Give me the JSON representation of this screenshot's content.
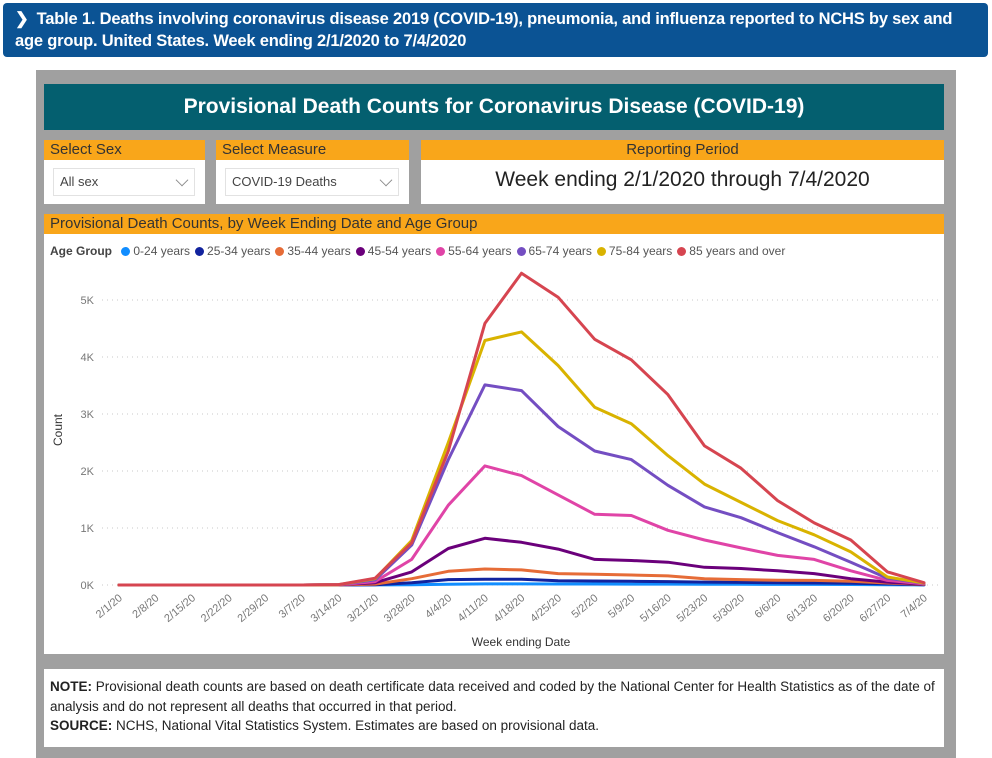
{
  "banner": {
    "chevron_icon": "chevron-right-icon",
    "chevron_glyph": "❯",
    "text": "Table 1. Deaths involving coronavirus disease 2019 (COVID-19), pneumonia, and influenza reported to NCHS by sex and age group. United States. Week ending 2/1/2020 to 7/4/2020"
  },
  "dashboard_title": "Provisional Death Counts for Coronavirus Disease (COVID-19)",
  "filters": {
    "sex": {
      "label": "Select Sex",
      "value": "All sex"
    },
    "measure": {
      "label": "Select Measure",
      "value": "COVID-19 Deaths"
    }
  },
  "reporting_period": {
    "label": "Reporting Period",
    "value": "Week ending 2/1/2020 through 7/4/2020"
  },
  "chart_section_title": "Provisional Death Counts, by Week Ending Date and Age Group",
  "note": {
    "note_label": "NOTE:",
    "note_text": " Provisional death counts are based on death certificate data received and coded by the National Center for Health Statistics as of the date of analysis and do not represent all deaths that occurred in that period.",
    "source_label": "SOURCE:",
    "source_text": " NCHS, National Vital Statistics System. Estimates are based on provisional data."
  },
  "colors": {
    "banner": "#0b5394",
    "title_bar": "#045f6f",
    "section_header": "#f9a61a",
    "frame": "#a0a0a0"
  },
  "chart_data": {
    "type": "line",
    "title": "Provisional Death Counts, by Week Ending Date and Age Group",
    "xlabel": "Week ending Date",
    "ylabel": "Count",
    "ylim": [
      0,
      5500
    ],
    "yticks": [
      0,
      1000,
      2000,
      3000,
      4000,
      5000
    ],
    "ytick_labels": [
      "0K",
      "1K",
      "2K",
      "3K",
      "4K",
      "5K"
    ],
    "grid": true,
    "legend_title": "Age Group",
    "legend_position": "top-left",
    "x": [
      "2/1/20",
      "2/8/20",
      "2/15/20",
      "2/22/20",
      "2/29/20",
      "3/7/20",
      "3/14/20",
      "3/21/20",
      "3/28/20",
      "4/4/20",
      "4/11/20",
      "4/18/20",
      "4/25/20",
      "5/2/20",
      "5/9/20",
      "5/16/20",
      "5/23/20",
      "5/30/20",
      "6/6/20",
      "6/13/20",
      "6/20/20",
      "6/27/20",
      "7/4/20"
    ],
    "series": [
      {
        "name": "0-24 years",
        "color": "#118dff",
        "values": [
          0,
          0,
          0,
          0,
          0,
          0,
          0,
          2,
          5,
          12,
          20,
          20,
          18,
          18,
          16,
          15,
          13,
          12,
          11,
          10,
          9,
          6,
          2
        ]
      },
      {
        "name": "25-34 years",
        "color": "#12239e",
        "values": [
          0,
          0,
          0,
          0,
          0,
          0,
          1,
          5,
          40,
          95,
          100,
          100,
          75,
          70,
          65,
          60,
          50,
          45,
          40,
          35,
          30,
          20,
          5
        ]
      },
      {
        "name": "35-44 years",
        "color": "#e66c37",
        "values": [
          0,
          0,
          0,
          0,
          0,
          0,
          2,
          15,
          110,
          240,
          280,
          265,
          200,
          190,
          175,
          160,
          110,
          95,
          85,
          80,
          65,
          35,
          10
        ]
      },
      {
        "name": "45-54 years",
        "color": "#6b007b",
        "values": [
          0,
          0,
          0,
          0,
          0,
          0,
          3,
          40,
          230,
          640,
          820,
          750,
          630,
          450,
          430,
          400,
          310,
          290,
          250,
          200,
          110,
          50,
          15
        ]
      },
      {
        "name": "55-64 years",
        "color": "#e044a7",
        "values": [
          0,
          0,
          0,
          0,
          0,
          0,
          4,
          60,
          450,
          1400,
          2090,
          1920,
          1580,
          1240,
          1220,
          960,
          790,
          650,
          520,
          450,
          250,
          80,
          20
        ]
      },
      {
        "name": "65-74 years",
        "color": "#744ec2",
        "values": [
          0,
          0,
          0,
          0,
          0,
          0,
          5,
          90,
          700,
          2200,
          3510,
          3410,
          2780,
          2350,
          2200,
          1750,
          1370,
          1180,
          920,
          670,
          400,
          120,
          30
        ]
      },
      {
        "name": "75-84 years",
        "color": "#d9b300",
        "values": [
          0,
          0,
          0,
          0,
          0,
          0,
          6,
          110,
          780,
          2500,
          4290,
          4440,
          3850,
          3120,
          2830,
          2270,
          1770,
          1450,
          1130,
          880,
          580,
          140,
          35
        ]
      },
      {
        "name": "85 years and over",
        "color": "#d64550",
        "values": [
          0,
          0,
          0,
          0,
          0,
          0,
          7,
          120,
          740,
          2350,
          4590,
          5470,
          5050,
          4310,
          3950,
          3340,
          2440,
          2050,
          1480,
          1090,
          790,
          230,
          40
        ]
      }
    ]
  }
}
